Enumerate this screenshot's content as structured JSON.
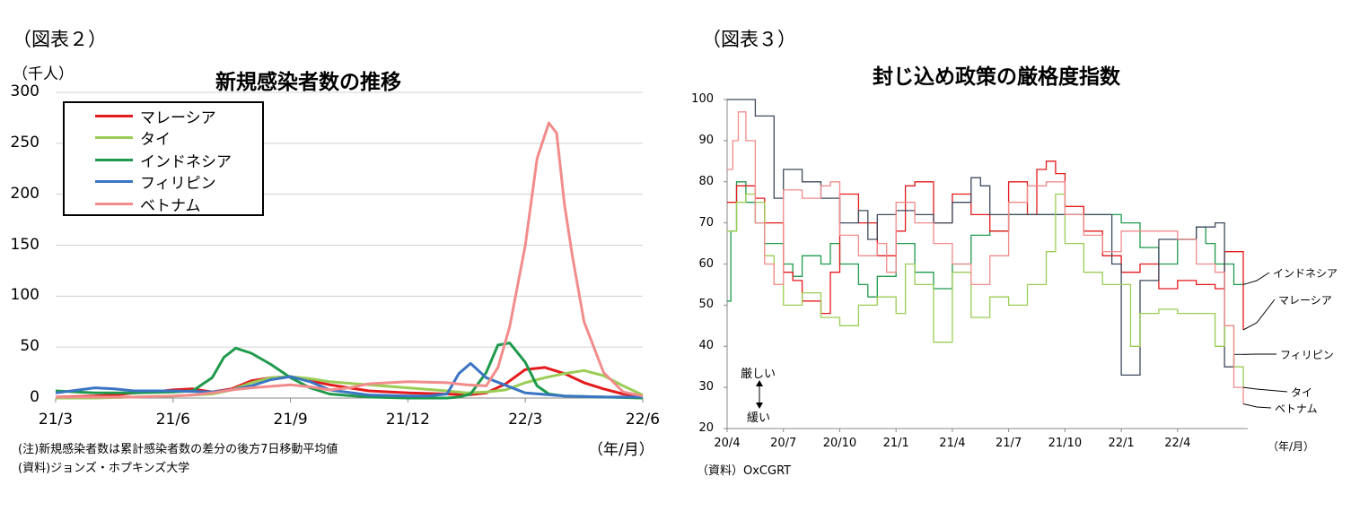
{
  "left": {
    "panel_label": "（図表２）",
    "unit": "（千人）",
    "note": "(注)新規感染者数は累計感染者数の差分の後方7日移動平均値",
    "source": "(資料)ジョンズ・ホプキンズ大学",
    "x_unit": "（年/月）"
  },
  "right": {
    "panel_label": "（図表３）",
    "source": "（資料）OxCGRT",
    "x_unit": "（年/月）",
    "strict_label": "厳しい",
    "lenient_label": "緩い"
  },
  "chart_data": [
    {
      "type": "line",
      "title": "新規感染者数の推移",
      "ylabel": "（千人）",
      "xlabel": "（年/月）",
      "ylim": [
        0,
        300
      ],
      "yticks": [
        "0",
        "50",
        "100",
        "150",
        "200",
        "250",
        "300"
      ],
      "xticks": [
        "21/3",
        "21/6",
        "21/9",
        "21/12",
        "22/3",
        "22/6"
      ],
      "grid": true,
      "legend": "top-left",
      "series": [
        {
          "name": "マレーシア",
          "color": "#e41a1c",
          "x": [
            0,
            1,
            1.5,
            2,
            2.5,
            3,
            3.5,
            4,
            4.5,
            5,
            5.5,
            6,
            6.5,
            7,
            7.5,
            8,
            9,
            10,
            10.5,
            11,
            11.5,
            12,
            12.5,
            13,
            13.5,
            14,
            14.5,
            15
          ],
          "y": [
            1,
            2,
            3,
            5,
            6,
            8,
            9,
            6,
            9,
            17,
            20,
            21,
            17,
            13,
            10,
            7,
            5,
            4,
            3,
            5,
            14,
            28,
            30,
            24,
            15,
            9,
            4,
            2
          ]
        },
        {
          "name": "タイ",
          "color": "#9acd55",
          "x": [
            0,
            1,
            2,
            3,
            3.5,
            4,
            4.5,
            5,
            5.5,
            6,
            6.5,
            7,
            8,
            9,
            10,
            10.5,
            11,
            11.5,
            12,
            12.5,
            13,
            13.5,
            14,
            14.5,
            15
          ],
          "y": [
            0,
            0,
            1,
            2,
            3,
            4,
            8,
            15,
            20,
            21,
            19,
            16,
            13,
            10,
            7,
            5,
            6,
            8,
            15,
            20,
            24,
            27,
            22,
            12,
            3
          ]
        },
        {
          "name": "インドネシア",
          "color": "#1e9a4c",
          "x": [
            0,
            1,
            2,
            3,
            3.5,
            4,
            4.3,
            4.6,
            5,
            5.5,
            6,
            6.5,
            7,
            8,
            9,
            10,
            10.3,
            10.6,
            11,
            11.3,
            11.6,
            12,
            12.3,
            12.6,
            13,
            14,
            15
          ],
          "y": [
            7,
            5,
            5,
            6,
            7,
            20,
            40,
            49,
            44,
            33,
            20,
            10,
            4,
            1,
            0,
            0,
            1,
            4,
            25,
            52,
            54,
            35,
            12,
            4,
            2,
            1,
            0
          ]
        },
        {
          "name": "フィリピン",
          "color": "#3a75c4",
          "x": [
            0,
            1,
            1.5,
            2,
            3,
            4,
            4.5,
            5,
            5.5,
            6,
            6.5,
            7,
            8,
            9,
            9.5,
            10,
            10.3,
            10.6,
            11,
            12,
            13,
            14,
            15
          ],
          "y": [
            5,
            10,
            9,
            7,
            7,
            6,
            8,
            12,
            18,
            21,
            16,
            8,
            3,
            2,
            2,
            4,
            24,
            34,
            20,
            5,
            2,
            1,
            1
          ]
        },
        {
          "name": "ベトナム",
          "color": "#f28c8c",
          "x": [
            0,
            1,
            2,
            3,
            3.5,
            4,
            4.5,
            5,
            6,
            6.5,
            7,
            7.5,
            8,
            9,
            10,
            10.5,
            11,
            11.3,
            11.6,
            12,
            12.3,
            12.6,
            12.8,
            13,
            13.2,
            13.5,
            14,
            14.5,
            15
          ],
          "y": [
            1,
            1,
            1,
            2,
            3,
            5,
            8,
            10,
            13,
            11,
            8,
            10,
            14,
            16,
            15,
            13,
            12,
            30,
            70,
            150,
            235,
            270,
            260,
            190,
            140,
            75,
            25,
            6,
            2
          ]
        }
      ]
    },
    {
      "type": "line",
      "title": "封じ込め政策の厳格度指数",
      "xlabel": "（年/月）",
      "ylim": [
        20,
        100
      ],
      "yticks": [
        "20",
        "30",
        "40",
        "50",
        "60",
        "70",
        "80",
        "90",
        "100"
      ],
      "xticks": [
        "20/4",
        "20/7",
        "20/10",
        "21/1",
        "21/4",
        "21/7",
        "21/10",
        "22/1",
        "22/4"
      ],
      "grid": false,
      "legend": "right",
      "series": [
        {
          "name": "インドネシア",
          "color": "#1e9a4c",
          "x": [
            0,
            0.2,
            0.5,
            1,
            1.5,
            2,
            3,
            3.5,
            4,
            5,
            5.5,
            6,
            7,
            7.5,
            8,
            9,
            10,
            11,
            12,
            13,
            14,
            15,
            16,
            17,
            18,
            19,
            20,
            21,
            22,
            23,
            24,
            25,
            25.5,
            26,
            27,
            27.5
          ],
          "y": [
            51,
            68,
            80,
            75,
            70,
            65,
            60,
            57,
            62,
            60,
            65,
            60,
            55,
            52,
            57,
            65,
            58,
            54,
            60,
            67,
            68,
            72,
            72,
            72,
            72,
            72,
            72,
            70,
            64,
            60,
            66,
            69,
            65,
            60,
            55,
            56
          ]
        },
        {
          "name": "マレーシア",
          "color": "#e41a1c",
          "x": [
            0,
            0.5,
            1,
            1.5,
            2,
            3,
            3.5,
            4,
            5,
            5.5,
            6,
            7,
            8,
            9,
            9.5,
            10,
            11,
            12,
            13,
            14,
            15,
            16,
            16.5,
            17,
            17.5,
            18,
            19,
            20,
            21,
            22,
            23,
            24,
            25,
            26,
            26.5,
            27,
            27.5
          ],
          "y": [
            75,
            79,
            79,
            76,
            70,
            58,
            56,
            51,
            48,
            58,
            77,
            70,
            62,
            68,
            79,
            80,
            70,
            77,
            72,
            68,
            80,
            72,
            83,
            85,
            82,
            74,
            68,
            62,
            58,
            60,
            54,
            56,
            55,
            54,
            63,
            63,
            44
          ]
        },
        {
          "name": "フィリピン",
          "color": "#3f4a5e",
          "x": [
            0,
            1,
            1.5,
            2,
            2.5,
            3,
            4,
            5,
            6,
            7,
            7.5,
            8,
            9,
            10,
            11,
            12,
            13,
            13.5,
            14,
            15,
            16,
            17,
            18,
            19,
            20,
            20.5,
            21,
            22,
            23,
            24,
            25,
            26,
            26.5,
            27,
            27.5
          ],
          "y": [
            100,
            100,
            96,
            96,
            76,
            83,
            80,
            76,
            70,
            73,
            66,
            72,
            73,
            72,
            70,
            75,
            81,
            79,
            72,
            72,
            72,
            72,
            72,
            72,
            72,
            60,
            33,
            56,
            66,
            66,
            69,
            70,
            35,
            38,
            38
          ]
        },
        {
          "name": "タイ",
          "color": "#9acd55",
          "x": [
            0,
            0.5,
            1,
            1.5,
            2,
            2.5,
            3,
            4,
            5,
            6,
            7,
            8,
            9,
            9.5,
            10,
            11,
            12,
            13,
            14,
            15,
            16,
            17,
            17.5,
            18,
            19,
            20,
            21,
            21.5,
            22,
            23,
            24,
            25,
            26,
            26.5,
            27,
            27.5
          ],
          "y": [
            68,
            75,
            77,
            75,
            62,
            55,
            50,
            53,
            47,
            45,
            50,
            52,
            48,
            60,
            55,
            41,
            58,
            47,
            52,
            50,
            55,
            63,
            77,
            65,
            58,
            55,
            55,
            40,
            48,
            49,
            48,
            48,
            40,
            45,
            35,
            30
          ]
        },
        {
          "name": "ベトナム",
          "color": "#f28c8c",
          "x": [
            0,
            0.3,
            0.6,
            1,
            1.5,
            2,
            2.5,
            3,
            4,
            5,
            5.5,
            6,
            7,
            8,
            8.5,
            9,
            10,
            11,
            12,
            13,
            14,
            15,
            16,
            16.5,
            17,
            18,
            19,
            20,
            21,
            22,
            23,
            24,
            25,
            26,
            26.5,
            27,
            27.5
          ],
          "y": [
            83,
            90,
            97,
            90,
            70,
            60,
            55,
            78,
            76,
            79,
            80,
            67,
            62,
            65,
            58,
            75,
            70,
            65,
            60,
            55,
            62,
            75,
            79,
            79,
            80,
            72,
            67,
            63,
            68,
            68,
            68,
            66,
            60,
            58,
            45,
            30,
            26
          ]
        }
      ],
      "annotations": [
        "インドネシア",
        "マレーシア",
        "フィリピン",
        "タイ",
        "ベトナム"
      ]
    }
  ]
}
